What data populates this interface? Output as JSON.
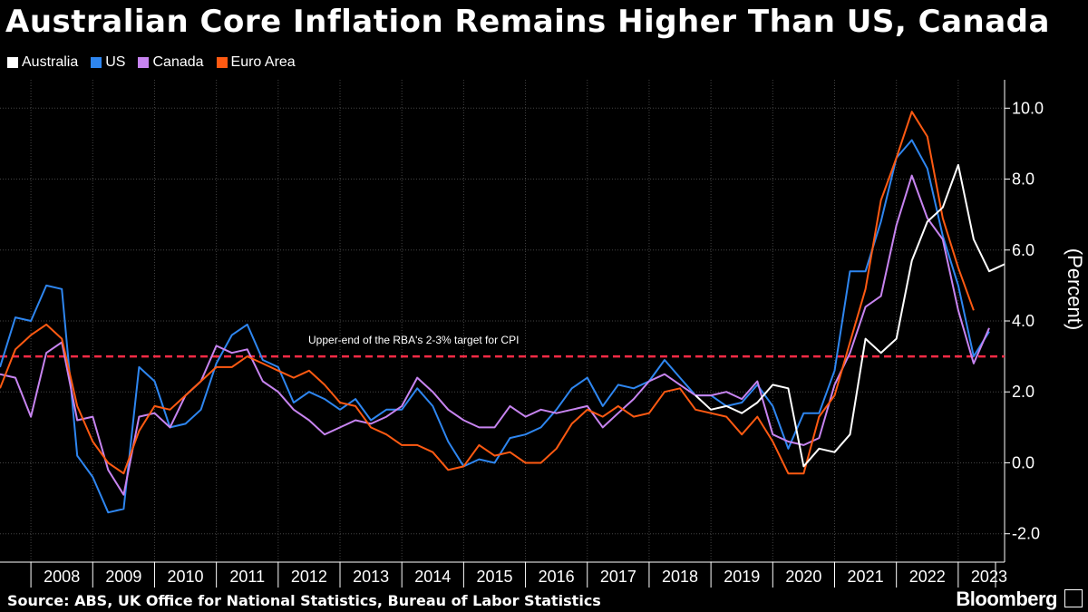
{
  "header": {
    "title": "Australian Core Inflation Remains Higher Than US, Canada"
  },
  "footer": {
    "source": "Source: ABS, UK Office for National Statistics, Bureau of Labor Statistics",
    "brand": "Bloomberg"
  },
  "colors": {
    "Australia": "#ffffff",
    "US": "#2e86f0",
    "Canada": "#c784f0",
    "Euro Area": "#ff5a12",
    "target": "#ff2b46",
    "grid": "#444444"
  },
  "chart_data": {
    "type": "line",
    "title": "Australian Core Inflation Remains Higher Than US, Canada",
    "ylabel": "(Percent)",
    "xlabel": "",
    "ylim": [
      -2.8,
      10.8
    ],
    "yticks": [
      -2.0,
      0.0,
      2.0,
      4.0,
      6.0,
      8.0,
      10.0
    ],
    "ytick_labels": [
      "-2.0",
      "0.0",
      "2.0",
      "4.0",
      "6.0",
      "8.0",
      "10.0"
    ],
    "x_start": 2007.5,
    "x_end": 2023.75,
    "years": [
      "2008",
      "2009",
      "2010",
      "2011",
      "2012",
      "2013",
      "2014",
      "2015",
      "2016",
      "2017",
      "2018",
      "2019",
      "2020",
      "2021",
      "2022",
      "2023"
    ],
    "x_step": 0.25,
    "legend": [
      "Australia",
      "US",
      "Canada",
      "Euro Area"
    ],
    "legend_position": "top-left",
    "annotation": {
      "text": "Upper-end of the RBA's 2-3% target for CPI",
      "y": 3.0
    },
    "series": [
      {
        "name": "US",
        "start": 2007.5,
        "values": [
          2.7,
          4.1,
          4.0,
          5.0,
          4.9,
          0.2,
          -0.4,
          -1.4,
          -1.3,
          2.7,
          2.3,
          1.0,
          1.1,
          1.5,
          2.8,
          3.6,
          3.9,
          2.9,
          2.7,
          1.7,
          2.0,
          1.8,
          1.5,
          1.8,
          1.2,
          1.5,
          1.5,
          2.1,
          1.6,
          0.6,
          -0.1,
          0.1,
          0.0,
          0.7,
          0.8,
          1.0,
          1.5,
          2.1,
          2.4,
          1.6,
          2.2,
          2.1,
          2.3,
          2.9,
          2.4,
          1.9,
          1.9,
          1.6,
          1.7,
          2.2,
          1.6,
          0.4,
          1.4,
          1.4,
          2.6,
          5.4,
          5.4,
          6.8,
          8.6,
          9.1,
          8.3,
          6.4,
          5.0,
          3.0,
          3.7
        ]
      },
      {
        "name": "Canada",
        "start": 2007.5,
        "values": [
          2.5,
          2.4,
          1.3,
          3.1,
          3.4,
          1.2,
          1.3,
          -0.2,
          -0.9,
          1.3,
          1.4,
          1.0,
          1.9,
          2.3,
          3.3,
          3.1,
          3.2,
          2.3,
          2.0,
          1.5,
          1.2,
          0.8,
          1.0,
          1.2,
          1.1,
          1.3,
          1.6,
          2.4,
          2.0,
          1.5,
          1.2,
          1.0,
          1.0,
          1.6,
          1.3,
          1.5,
          1.4,
          1.5,
          1.6,
          1.0,
          1.4,
          1.8,
          2.3,
          2.5,
          2.2,
          1.9,
          1.9,
          2.0,
          1.8,
          2.3,
          0.8,
          0.6,
          0.5,
          0.7,
          2.2,
          3.1,
          4.4,
          4.7,
          6.7,
          8.1,
          6.9,
          6.3,
          4.3,
          2.8,
          3.8
        ]
      },
      {
        "name": "Euro Area",
        "start": 2007.5,
        "values": [
          2.1,
          3.2,
          3.6,
          3.9,
          3.5,
          1.6,
          0.6,
          0.0,
          -0.3,
          0.9,
          1.6,
          1.5,
          1.9,
          2.3,
          2.7,
          2.7,
          3.0,
          2.8,
          2.6,
          2.4,
          2.6,
          2.2,
          1.7,
          1.6,
          1.0,
          0.8,
          0.5,
          0.5,
          0.3,
          -0.2,
          -0.1,
          0.5,
          0.2,
          0.3,
          0.0,
          0.0,
          0.4,
          1.1,
          1.5,
          1.3,
          1.6,
          1.3,
          1.4,
          2.0,
          2.1,
          1.5,
          1.4,
          1.3,
          0.8,
          1.3,
          0.6,
          -0.3,
          -0.3,
          1.3,
          1.9,
          3.4,
          4.9,
          7.4,
          8.6,
          9.9,
          9.2,
          6.9,
          5.5,
          4.3
        ]
      },
      {
        "name": "Australia",
        "start": 2018.75,
        "values": [
          1.9,
          1.5,
          1.6,
          1.4,
          1.7,
          2.2,
          2.1,
          -0.1,
          0.4,
          0.3,
          0.8,
          3.5,
          3.1,
          3.5,
          5.7,
          6.8,
          7.2,
          8.4,
          6.3,
          5.4,
          5.6
        ]
      }
    ]
  }
}
